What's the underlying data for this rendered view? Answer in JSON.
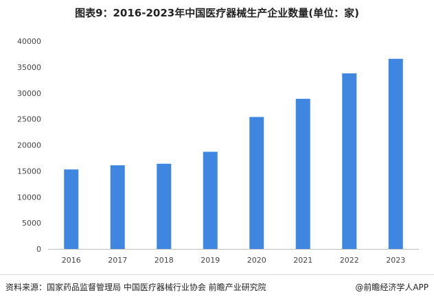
{
  "title": "图表9：2016-2023年中国医疗器械生产企业数量(单位：家)",
  "source": "资料来源：国家药品监督管理局 中国医疗器械行业协会 前瞻产业研究院",
  "credit": "@前瞻经济学人APP",
  "colors": {
    "bar": "#3e86e0",
    "axis": "#bfbfbf"
  },
  "chart_data": {
    "type": "bar",
    "title": "图表9：2016-2023年中国医疗器械生产企业数量(单位：家)",
    "categories": [
      "2016",
      "2017",
      "2018",
      "2019",
      "2020",
      "2021",
      "2022",
      "2023"
    ],
    "values": [
      15300,
      16100,
      16400,
      18700,
      25400,
      28900,
      33800,
      36600
    ],
    "ylim": [
      0,
      40000
    ],
    "yticks": [
      0,
      5000,
      10000,
      15000,
      20000,
      25000,
      30000,
      35000,
      40000
    ],
    "grid": false,
    "legend": "none"
  }
}
